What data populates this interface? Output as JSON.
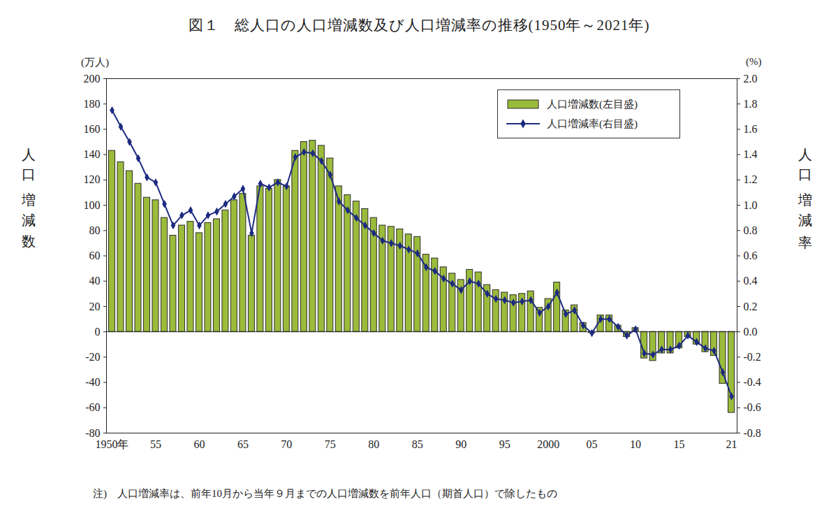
{
  "chart_data": {
    "type": "bar",
    "title": "図１　総人口の人口増減数及び人口増減率の推移(1950年～2021年)",
    "y_label": "人口増減数",
    "y2_label": "人口増減率",
    "y_unit": "(万人)",
    "y2_unit": "(%)",
    "note": "注)　人口増減率は、前年10月から当年９月までの人口増減数を前年人口（期首人口）で除したもの",
    "categories": [
      "1950年",
      null,
      null,
      null,
      null,
      "55",
      null,
      null,
      null,
      null,
      "60",
      null,
      null,
      null,
      null,
      "65",
      null,
      null,
      null,
      null,
      "70",
      null,
      null,
      null,
      null,
      "75",
      null,
      null,
      null,
      null,
      "80",
      null,
      null,
      null,
      null,
      "85",
      null,
      null,
      null,
      null,
      "90",
      null,
      null,
      null,
      null,
      "95",
      null,
      null,
      null,
      null,
      "2000",
      null,
      null,
      null,
      null,
      "05",
      null,
      null,
      null,
      null,
      "10",
      null,
      null,
      null,
      null,
      "15",
      null,
      null,
      null,
      null,
      null,
      "21"
    ],
    "series": [
      {
        "name": "人口増減数(左目盛)",
        "type": "bar",
        "color": "#9bbb3b",
        "values": [
          143,
          134,
          127,
          117,
          106,
          104,
          90,
          76,
          84,
          87,
          78,
          86,
          89,
          96,
          104,
          109,
          76,
          115,
          113,
          120,
          115,
          143,
          150,
          151,
          147,
          137,
          115,
          108,
          103,
          97,
          90,
          84,
          83,
          81,
          77,
          75,
          61,
          58,
          51,
          46,
          41,
          49,
          47,
          37,
          33,
          31,
          29,
          30,
          32,
          19,
          26,
          39,
          17,
          21,
          7,
          -1,
          13,
          13,
          5,
          -4,
          3,
          -21,
          -23,
          -17,
          -17,
          -13,
          -4,
          -10,
          -16,
          -19,
          -41,
          -64
        ]
      },
      {
        "name": "人口増減率(右目盛)",
        "type": "line",
        "axis": "y2",
        "color": "#1c2a80",
        "marker": "diamond",
        "values": [
          1.75,
          1.62,
          1.5,
          1.37,
          1.22,
          1.18,
          1.01,
          0.84,
          0.92,
          0.96,
          0.84,
          0.92,
          0.95,
          1.01,
          1.07,
          1.13,
          0.78,
          1.17,
          1.14,
          1.18,
          1.15,
          1.38,
          1.42,
          1.41,
          1.35,
          1.24,
          1.03,
          0.96,
          0.9,
          0.84,
          0.78,
          0.72,
          0.7,
          0.68,
          0.65,
          0.62,
          0.51,
          0.48,
          0.42,
          0.38,
          0.33,
          0.4,
          0.38,
          0.3,
          0.26,
          0.25,
          0.23,
          0.24,
          0.25,
          0.15,
          0.2,
          0.31,
          0.14,
          0.17,
          0.05,
          -0.01,
          0.1,
          0.1,
          0.04,
          -0.03,
          0.02,
          -0.17,
          -0.18,
          -0.14,
          -0.14,
          -0.11,
          -0.03,
          -0.08,
          -0.13,
          -0.15,
          -0.32,
          -0.51
        ]
      }
    ],
    "ylim": [
      -80,
      200
    ],
    "yticks": [
      -80,
      -60,
      -40,
      -20,
      0,
      20,
      40,
      60,
      80,
      100,
      120,
      140,
      160,
      180,
      200
    ],
    "y2lim": [
      -0.8,
      2.0
    ],
    "y2ticks": [
      {
        "value": -0.8,
        "label": "-0.8"
      },
      {
        "value": -0.6,
        "label": "-0.6"
      },
      {
        "value": -0.4,
        "label": "-0.4"
      },
      {
        "value": -0.2,
        "label": "-0.2"
      },
      {
        "value": 0,
        "label": "0.0"
      },
      {
        "value": 0.2,
        "label": "0.2"
      },
      {
        "value": 0.4,
        "label": "0.4"
      },
      {
        "value": 0.6,
        "label": "0.6"
      },
      {
        "value": 0.8,
        "label": "0.8"
      },
      {
        "value": 1.0,
        "label": "1.0"
      },
      {
        "value": 1.2,
        "label": "1.2"
      },
      {
        "value": 1.4,
        "label": "1.4"
      },
      {
        "value": 1.6,
        "label": "1.6"
      },
      {
        "value": 1.8,
        "label": "1.8"
      },
      {
        "value": 2.0,
        "label": "2.0"
      }
    ],
    "grid": false,
    "legend": "top-right"
  }
}
